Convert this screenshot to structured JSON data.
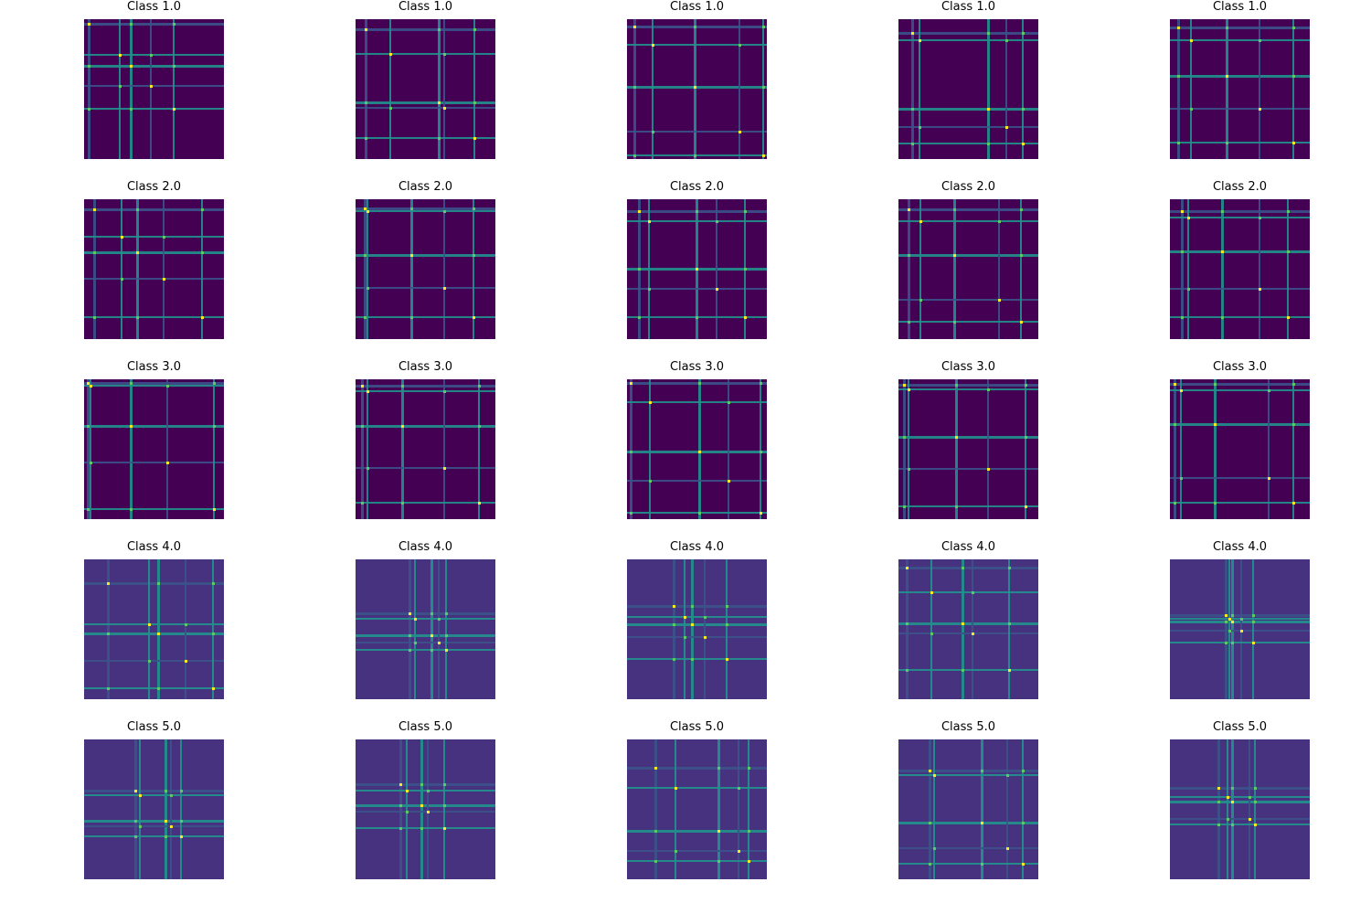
{
  "chart_data": {
    "type": "heatmap",
    "layout": "5 rows x 5 columns grid of image panels, axes hidden",
    "colormap": "viridis",
    "colors": {
      "low": "#440154",
      "mid_low": "#3b528b",
      "mid": "#21918c",
      "mid_high": "#5ec962",
      "high": "#fde725"
    },
    "grid": false,
    "legend": "none",
    "panels": [
      {
        "title": "Class 1.0",
        "lines": [
          4,
          38,
          50,
          72,
          97
        ]
      },
      {
        "title": "Class 1.0",
        "lines": [
          10,
          37,
          90,
          96,
          129
        ]
      },
      {
        "title": "Class 1.0",
        "lines": [
          7,
          27,
          73,
          122,
          148
        ]
      },
      {
        "title": "Class 1.0",
        "lines": [
          14,
          22,
          97,
          117,
          135
        ]
      },
      {
        "title": "Class 1.0",
        "lines": [
          8,
          22,
          61,
          97,
          134
        ]
      },
      {
        "title": "Class 2.0",
        "lines": [
          10,
          40,
          57,
          86,
          128
        ]
      },
      {
        "title": "Class 2.0",
        "lines": [
          9,
          12,
          60,
          96,
          128
        ]
      },
      {
        "title": "Class 2.0",
        "lines": [
          12,
          23,
          75,
          97,
          128
        ]
      },
      {
        "title": "Class 2.0",
        "lines": [
          10,
          23,
          60,
          109,
          133
        ]
      },
      {
        "title": "Class 2.0",
        "lines": [
          12,
          19,
          56,
          97,
          128
        ]
      },
      {
        "title": "Class 3.0",
        "lines": [
          3,
          6,
          50,
          90,
          141
        ]
      },
      {
        "title": "Class 3.0",
        "lines": [
          6,
          12,
          50,
          96,
          134
        ]
      },
      {
        "title": "Class 3.0",
        "lines": [
          3,
          24,
          78,
          110,
          145
        ]
      },
      {
        "title": "Class 3.0",
        "lines": [
          5,
          10,
          62,
          97,
          138
        ]
      },
      {
        "title": "Class 3.0",
        "lines": [
          4,
          11,
          48,
          107,
          134
        ]
      },
      {
        "title": "Class 4.0",
        "lines": [
          25,
          70,
          80,
          110,
          140
        ]
      },
      {
        "title": "Class 4.0",
        "lines": [
          58,
          64,
          82,
          90,
          98
        ]
      },
      {
        "title": "Class 4.0",
        "lines": [
          50,
          62,
          70,
          84,
          108
        ]
      },
      {
        "title": "Class 4.0",
        "lines": [
          8,
          35,
          69,
          80,
          120
        ]
      },
      {
        "title": "Class 4.0",
        "lines": [
          60,
          64,
          67,
          77,
          90
        ]
      },
      {
        "title": "Class 5.0",
        "lines": [
          55,
          60,
          88,
          94,
          105
        ]
      },
      {
        "title": "Class 5.0",
        "lines": [
          48,
          55,
          71,
          78,
          96
        ]
      },
      {
        "title": "Class 5.0",
        "lines": [
          30,
          52,
          99,
          121,
          132
        ]
      },
      {
        "title": "Class 5.0",
        "lines": [
          33,
          38,
          90,
          118,
          135
        ]
      },
      {
        "title": "Class 5.0",
        "lines": [
          52,
          62,
          67,
          86,
          92
        ]
      }
    ]
  }
}
